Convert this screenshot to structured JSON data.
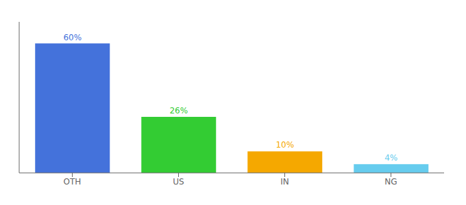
{
  "chart_data": {
    "type": "bar",
    "categories": [
      "OTH",
      "US",
      "IN",
      "NG"
    ],
    "values": [
      60,
      26,
      10,
      4
    ],
    "value_labels": [
      "60%",
      "26%",
      "10%",
      "4%"
    ],
    "colors": [
      "#4472db",
      "#33cc33",
      "#f5a800",
      "#66ccee"
    ],
    "ylim": [
      0,
      70
    ],
    "data_labels": true,
    "tick_labels": "x",
    "grid": false
  }
}
